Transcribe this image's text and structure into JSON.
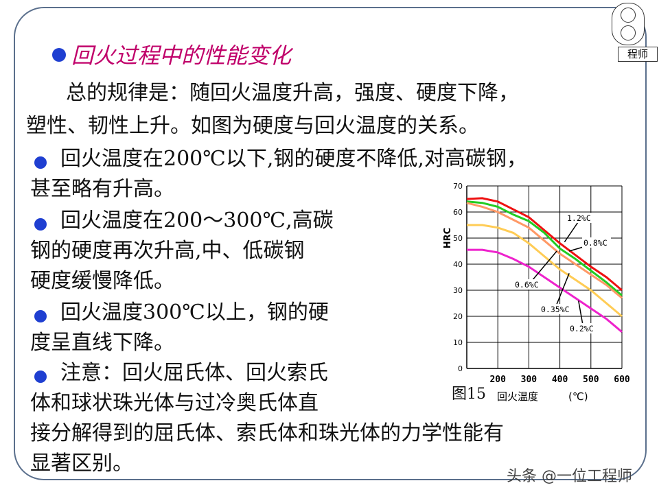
{
  "logo": {
    "tag": "程师"
  },
  "title": "回火过程中的性能变化",
  "summary": {
    "line1": "总的规律是：随回火温度升高，强度、硬度下降，",
    "line2": "塑性、韧性上升。如图为硬度与回火温度的关系。"
  },
  "bullets": [
    {
      "lines": [
        "回火温度在200℃以下,钢的硬度不降低,对高碳钢，",
        "甚至略有升高。"
      ]
    },
    {
      "lines": [
        "回火温度在200～300℃,高碳",
        "钢的硬度再次升高,中、低碳钢",
        "硬度缓慢降低。"
      ]
    },
    {
      "lines": [
        "回火温度300℃以上，钢的硬",
        "度呈直线下降。"
      ]
    },
    {
      "lines": [
        "注意：回火屈氏体、回火索氏",
        "体和球状珠光体与过冷奥氏体直",
        "接分解得到的屈氏体、索氏体和珠光体的力学性能有",
        "显著区别。"
      ]
    }
  ],
  "figure_label": "图15",
  "chart_data": {
    "type": "line",
    "title": "",
    "xlabel": "回火温度",
    "xunit": "(℃)",
    "ylabel": "HRC",
    "xlim": [
      100,
      600
    ],
    "ylim": [
      0,
      70
    ],
    "x_ticks": [
      200,
      300,
      400,
      500,
      600
    ],
    "y_ticks": [
      0,
      10,
      20,
      30,
      40,
      50,
      60,
      70
    ],
    "grid": true,
    "series": [
      {
        "name": "1.2%C",
        "color": "#ee1111",
        "x": [
          100,
          150,
          200,
          250,
          300,
          350,
          400,
          450,
          500,
          550,
          600
        ],
        "y": [
          65,
          65.3,
          64,
          61,
          58,
          53,
          48,
          43.5,
          39,
          35,
          30
        ]
      },
      {
        "name": "0.8%C",
        "color": "#22cc22",
        "x": [
          100,
          150,
          200,
          250,
          300,
          350,
          400,
          450,
          500,
          550,
          600
        ],
        "y": [
          64,
          63.5,
          62,
          59,
          56.5,
          52,
          46,
          42,
          37.5,
          33,
          28
        ]
      },
      {
        "name": "0.6%C",
        "color": "#ff9966",
        "x": [
          100,
          150,
          200,
          250,
          300,
          350,
          400,
          450,
          500,
          550,
          600
        ],
        "y": [
          63.5,
          62,
          60,
          57,
          54,
          49,
          44,
          40,
          36,
          32,
          27
        ]
      },
      {
        "name": "0.35%C",
        "color": "#ffcc55",
        "x": [
          100,
          150,
          200,
          250,
          300,
          350,
          400,
          450,
          500,
          550,
          600
        ],
        "y": [
          55,
          55,
          54,
          52,
          48,
          43,
          38,
          34,
          30,
          25,
          20
        ]
      },
      {
        "name": "0.2%C",
        "color": "#ee22cc",
        "x": [
          100,
          150,
          200,
          250,
          300,
          350,
          400,
          450,
          500,
          550,
          600
        ],
        "y": [
          45.5,
          45.5,
          44.5,
          42,
          39,
          35,
          31,
          27,
          23,
          19,
          14
        ]
      }
    ]
  },
  "watermark": "头条 @一位工程师"
}
